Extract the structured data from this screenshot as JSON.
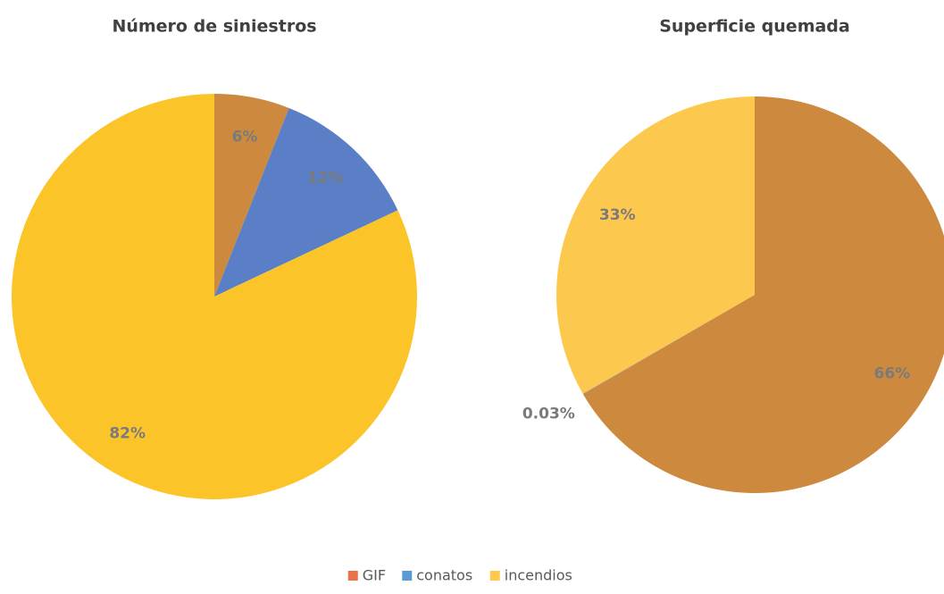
{
  "chart_data": [
    {
      "type": "pie",
      "title": "Número de siniestros",
      "categories": [
        "GIF",
        "conatos",
        "incendios"
      ],
      "values": [
        6,
        12,
        82
      ],
      "value_labels": [
        "6%",
        "12%",
        "82%"
      ],
      "colors": [
        "#cd8a3f",
        "#5a7fc7",
        "#fbc52a"
      ]
    },
    {
      "type": "pie",
      "title": "Superficie quemada",
      "categories": [
        "GIF",
        "conatos",
        "incendios"
      ],
      "values": [
        66,
        0.03,
        33
      ],
      "value_labels": [
        "66%",
        "0.03%",
        "33%"
      ],
      "colors": [
        "#cd8a3f",
        "#5a7fc7",
        "#fdc84e"
      ]
    }
  ],
  "legend": {
    "labels": [
      "GIF",
      "conatos",
      "incendios"
    ],
    "colors": [
      "#e8734a",
      "#5b9bd5",
      "#ffc94d"
    ],
    "position": "bottom"
  }
}
